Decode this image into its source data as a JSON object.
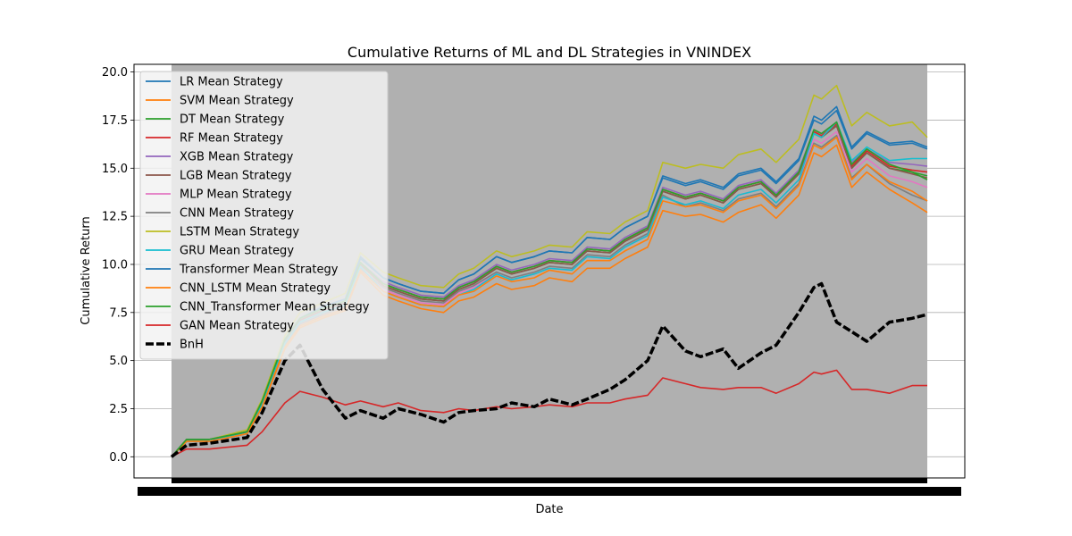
{
  "chart_data": {
    "type": "line",
    "title": "Cumulative Returns of ML and DL Strategies in VNINDEX",
    "xlabel": "Date",
    "ylabel": "Cumulative Return",
    "ylim": [
      -1.1,
      20.4
    ],
    "yticks": [
      "0.0",
      "2.5",
      "5.0",
      "7.5",
      "10.0",
      "12.5",
      "15.0",
      "17.5",
      "20.0"
    ],
    "grid": "horizontal",
    "legend_position": "upper-left",
    "x_tick_labels_unreadable": true,
    "x": [
      0,
      0.02,
      0.05,
      0.1,
      0.12,
      0.15,
      0.17,
      0.2,
      0.23,
      0.25,
      0.28,
      0.3,
      0.33,
      0.36,
      0.38,
      0.4,
      0.43,
      0.45,
      0.48,
      0.5,
      0.53,
      0.55,
      0.58,
      0.6,
      0.63,
      0.65,
      0.68,
      0.7,
      0.73,
      0.75,
      0.78,
      0.8,
      0.83,
      0.85,
      0.86,
      0.88,
      0.9,
      0.92,
      0.95,
      0.98,
      1.0
    ],
    "series": [
      {
        "name": "LR Mean Strategy",
        "color": "#1f77b4",
        "style": "solid",
        "values": [
          0.0,
          0.8,
          0.8,
          1.3,
          2.8,
          6.0,
          7.2,
          7.8,
          8.2,
          10.4,
          9.3,
          9.0,
          8.6,
          8.5,
          9.2,
          9.5,
          10.4,
          10.1,
          10.4,
          10.7,
          10.6,
          11.4,
          11.3,
          11.9,
          12.5,
          14.5,
          14.1,
          14.3,
          13.9,
          14.6,
          14.9,
          14.2,
          15.4,
          17.5,
          17.3,
          18.0,
          16.0,
          16.8,
          16.2,
          16.3,
          16.0
        ]
      },
      {
        "name": "SVM Mean Strategy",
        "color": "#ff7f0e",
        "style": "solid",
        "values": [
          0.0,
          0.8,
          0.8,
          1.2,
          2.6,
          5.6,
          6.7,
          7.2,
          7.6,
          9.6,
          8.4,
          8.1,
          7.7,
          7.5,
          8.1,
          8.3,
          9.0,
          8.7,
          8.9,
          9.3,
          9.1,
          9.8,
          9.8,
          10.3,
          10.9,
          12.8,
          12.5,
          12.6,
          12.2,
          12.7,
          13.1,
          12.4,
          13.6,
          15.8,
          15.6,
          16.2,
          14.0,
          14.8,
          13.9,
          13.2,
          12.7
        ]
      },
      {
        "name": "DT Mean Strategy",
        "color": "#2ca02c",
        "style": "solid",
        "values": [
          0.0,
          0.9,
          0.8,
          1.3,
          2.9,
          6.1,
          7.1,
          7.6,
          8.0,
          10.0,
          8.9,
          8.6,
          8.2,
          8.1,
          8.7,
          9.0,
          9.8,
          9.5,
          9.8,
          10.1,
          10.0,
          10.7,
          10.6,
          11.2,
          11.8,
          13.8,
          13.4,
          13.6,
          13.2,
          13.9,
          14.2,
          13.5,
          14.7,
          16.8,
          16.6,
          17.2,
          15.0,
          15.8,
          15.0,
          14.8,
          14.6
        ]
      },
      {
        "name": "RF Mean Strategy",
        "color": "#d62728",
        "style": "solid",
        "values": [
          0.0,
          0.9,
          0.9,
          1.3,
          2.8,
          6.0,
          7.1,
          7.6,
          8.0,
          10.1,
          9.0,
          8.7,
          8.3,
          8.2,
          8.8,
          9.1,
          9.9,
          9.6,
          9.9,
          10.2,
          10.1,
          10.8,
          10.7,
          11.3,
          11.9,
          13.9,
          13.5,
          13.7,
          13.3,
          14.0,
          14.3,
          13.6,
          14.8,
          16.9,
          16.7,
          17.3,
          15.1,
          15.9,
          15.1,
          14.9,
          14.8
        ]
      },
      {
        "name": "XGB Mean Strategy",
        "color": "#9467bd",
        "style": "solid",
        "values": [
          0.0,
          0.9,
          0.9,
          1.3,
          2.8,
          6.0,
          7.1,
          7.6,
          8.0,
          10.1,
          9.1,
          8.8,
          8.4,
          8.3,
          8.9,
          9.2,
          10.0,
          9.7,
          10.0,
          10.3,
          10.2,
          10.9,
          10.8,
          11.4,
          12.0,
          14.0,
          13.6,
          13.8,
          13.4,
          14.1,
          14.4,
          13.7,
          14.9,
          17.0,
          16.8,
          17.4,
          15.3,
          16.0,
          15.3,
          15.2,
          15.1
        ]
      },
      {
        "name": "LGB Mean Strategy",
        "color": "#8c564b",
        "style": "solid",
        "values": [
          0.0,
          0.9,
          0.8,
          1.3,
          2.8,
          6.0,
          7.1,
          7.6,
          8.0,
          10.0,
          8.9,
          8.6,
          8.2,
          8.1,
          8.7,
          9.0,
          9.8,
          9.5,
          9.8,
          10.1,
          10.0,
          10.7,
          10.6,
          11.2,
          11.8,
          13.8,
          13.4,
          13.6,
          13.2,
          13.9,
          14.2,
          13.5,
          14.7,
          16.8,
          16.6,
          17.2,
          15.0,
          15.8,
          15.0,
          14.7,
          14.5
        ]
      },
      {
        "name": "MLP Mean Strategy",
        "color": "#e377c2",
        "style": "solid",
        "values": [
          0.0,
          0.8,
          0.8,
          1.2,
          2.7,
          5.8,
          6.9,
          7.4,
          7.8,
          9.8,
          8.7,
          8.4,
          8.0,
          7.9,
          8.5,
          8.8,
          9.5,
          9.2,
          9.5,
          9.8,
          9.7,
          10.4,
          10.3,
          10.9,
          11.5,
          13.5,
          13.1,
          13.3,
          12.9,
          13.6,
          13.9,
          13.2,
          14.4,
          16.5,
          16.3,
          16.9,
          14.8,
          15.5,
          14.6,
          14.3,
          14.0
        ]
      },
      {
        "name": "CNN Mean Strategy",
        "color": "#7f7f7f",
        "style": "solid",
        "values": [
          0.0,
          0.8,
          0.8,
          1.2,
          2.7,
          5.8,
          6.9,
          7.4,
          7.8,
          9.8,
          8.8,
          8.5,
          8.1,
          8.0,
          8.6,
          8.9,
          9.6,
          9.3,
          9.6,
          9.9,
          9.8,
          10.5,
          10.4,
          11.0,
          11.6,
          13.6,
          13.0,
          13.2,
          12.8,
          13.4,
          13.7,
          13.0,
          14.2,
          16.3,
          16.1,
          16.7,
          14.5,
          15.2,
          14.2,
          13.6,
          13.3
        ]
      },
      {
        "name": "LSTM Mean Strategy",
        "color": "#bcbd22",
        "style": "solid",
        "values": [
          0.0,
          0.9,
          0.9,
          1.4,
          3.0,
          6.3,
          7.5,
          8.0,
          8.5,
          10.6,
          9.6,
          9.3,
          8.9,
          8.8,
          9.5,
          9.8,
          10.7,
          10.4,
          10.7,
          11.0,
          10.9,
          11.7,
          11.6,
          12.2,
          12.8,
          15.3,
          15.0,
          15.2,
          15.0,
          15.7,
          16.0,
          15.3,
          16.5,
          18.8,
          18.6,
          19.3,
          17.2,
          17.9,
          17.2,
          17.4,
          16.6
        ]
      },
      {
        "name": "GRU Mean Strategy",
        "color": "#17becf",
        "style": "solid",
        "values": [
          0.0,
          0.8,
          0.8,
          1.3,
          2.7,
          5.9,
          7.0,
          7.5,
          7.9,
          9.9,
          8.6,
          8.3,
          7.9,
          7.8,
          8.4,
          8.7,
          9.5,
          9.2,
          9.5,
          9.8,
          9.7,
          10.4,
          10.3,
          10.9,
          11.5,
          13.5,
          13.1,
          13.3,
          12.9,
          13.6,
          13.9,
          13.2,
          14.4,
          16.8,
          16.6,
          17.4,
          15.4,
          16.1,
          15.4,
          15.5,
          15.5
        ]
      },
      {
        "name": "Transformer Mean Strategy",
        "color": "#1f77b4",
        "style": "solid",
        "values": [
          0.0,
          0.9,
          0.9,
          1.3,
          2.9,
          6.1,
          7.2,
          7.8,
          8.2,
          10.3,
          9.3,
          9.0,
          8.6,
          8.5,
          9.2,
          9.5,
          10.4,
          10.1,
          10.4,
          10.7,
          10.6,
          11.4,
          11.3,
          11.9,
          12.5,
          14.6,
          14.2,
          14.4,
          14.0,
          14.7,
          15.0,
          14.3,
          15.5,
          17.7,
          17.5,
          18.2,
          16.1,
          16.9,
          16.3,
          16.4,
          16.1
        ]
      },
      {
        "name": "CNN_LSTM Mean Strategy",
        "color": "#ff7f0e",
        "style": "solid",
        "values": [
          0.0,
          0.8,
          0.8,
          1.2,
          2.6,
          5.7,
          6.8,
          7.3,
          7.7,
          9.7,
          8.6,
          8.3,
          7.9,
          7.8,
          8.4,
          8.6,
          9.4,
          9.1,
          9.3,
          9.7,
          9.5,
          10.2,
          10.2,
          10.7,
          11.3,
          13.3,
          13.0,
          13.1,
          12.7,
          13.3,
          13.6,
          12.9,
          14.1,
          16.2,
          16.0,
          16.6,
          14.4,
          15.2,
          14.3,
          13.8,
          13.3
        ]
      },
      {
        "name": "CNN_Transformer Mean Strategy",
        "color": "#2ca02c",
        "style": "solid",
        "values": [
          0.0,
          0.9,
          0.9,
          1.3,
          2.9,
          6.1,
          7.2,
          7.7,
          8.1,
          10.1,
          9.0,
          8.7,
          8.3,
          8.2,
          8.8,
          9.1,
          9.9,
          9.6,
          9.9,
          10.2,
          10.1,
          10.8,
          10.7,
          11.3,
          11.9,
          13.9,
          13.5,
          13.7,
          13.3,
          14.0,
          14.3,
          13.6,
          14.8,
          17.0,
          16.8,
          17.4,
          15.2,
          16.0,
          15.2,
          14.8,
          14.4
        ]
      },
      {
        "name": "GAN Mean Strategy",
        "color": "#d62728",
        "style": "solid",
        "values": [
          0.0,
          0.4,
          0.4,
          0.6,
          1.3,
          2.8,
          3.4,
          3.1,
          2.7,
          2.9,
          2.6,
          2.8,
          2.4,
          2.3,
          2.5,
          2.4,
          2.6,
          2.5,
          2.6,
          2.7,
          2.6,
          2.8,
          2.8,
          3.0,
          3.2,
          4.1,
          3.8,
          3.6,
          3.5,
          3.6,
          3.6,
          3.3,
          3.8,
          4.4,
          4.3,
          4.5,
          3.5,
          3.5,
          3.3,
          3.7,
          3.7
        ]
      },
      {
        "name": "BnH",
        "color": "#000000",
        "style": "dashed",
        "values": [
          0.0,
          0.6,
          0.7,
          1.0,
          2.3,
          5.0,
          5.8,
          3.5,
          2.0,
          2.4,
          2.0,
          2.5,
          2.2,
          1.8,
          2.3,
          2.4,
          2.5,
          2.8,
          2.6,
          3.0,
          2.7,
          3.0,
          3.5,
          4.0,
          5.0,
          6.8,
          5.5,
          5.2,
          5.6,
          4.6,
          5.4,
          5.8,
          7.5,
          8.8,
          9.0,
          7.0,
          6.5,
          6.0,
          7.0,
          7.2,
          7.4
        ]
      }
    ]
  }
}
